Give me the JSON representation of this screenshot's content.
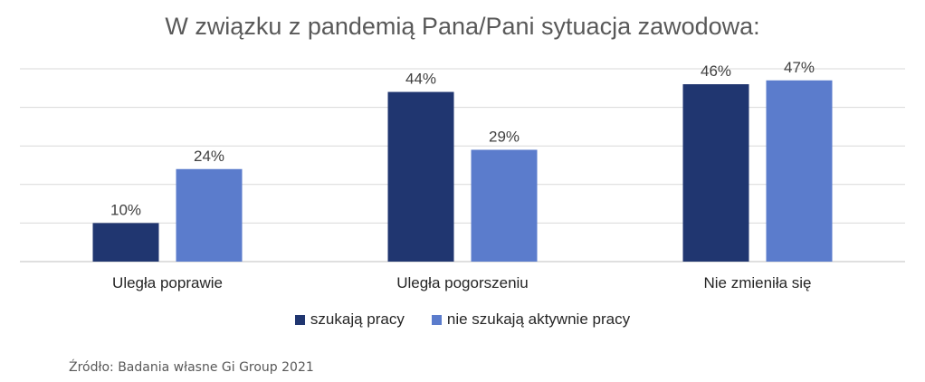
{
  "chart_data": {
    "type": "bar",
    "title": "W związku z pandemią Pana/Pani sytuacja zawodowa:",
    "categories": [
      "Uległa poprawie",
      "Uległa pogorszeniu",
      "Nie zmieniła się"
    ],
    "series": [
      {
        "name": "szukają pracy",
        "values": [
          10,
          44,
          46
        ],
        "labels": [
          "10%",
          "44%",
          "46%"
        ],
        "color": "#203670"
      },
      {
        "name": "nie szukają aktywnie pracy",
        "values": [
          24,
          29,
          47
        ],
        "labels": [
          "24%",
          "29%",
          "47%"
        ],
        "color": "#5b7ccc"
      }
    ],
    "ylim": [
      0,
      50
    ],
    "grid": true,
    "legend_position": "bottom"
  },
  "source": "Źródło: Badania własne Gi Group 2021"
}
